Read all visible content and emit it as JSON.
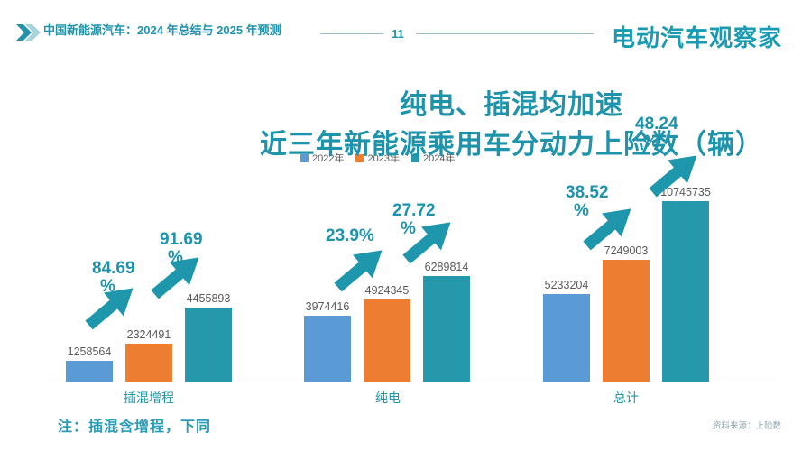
{
  "colors": {
    "teal": "#1E93AC",
    "bar_blue": "#5B9BD5",
    "bar_orange": "#ED7D31",
    "bar_teal": "#2598AC",
    "value_text": "#595959",
    "axis": "#D6D6D6"
  },
  "header": {
    "title": "中国新能源汽车：2024 年总结与 2025 年预测",
    "page_number": "11",
    "logo": "电动汽车观察家"
  },
  "title": {
    "line1": "纯电、插混均加速",
    "line2": "近三年新能源乘用车分动力上险数（辆）"
  },
  "chart_data": {
    "type": "bar",
    "title": "近三年新能源乘用车分动力上险数（辆）",
    "categories": [
      "插混增程",
      "纯电",
      "总计"
    ],
    "series": [
      {
        "name": "2022年",
        "color": "#5B9BD5",
        "values": [
          1258564,
          3974416,
          5233204
        ]
      },
      {
        "name": "2023年",
        "color": "#ED7D31",
        "values": [
          2324491,
          4924345,
          7249003
        ]
      },
      {
        "name": "2024年",
        "color": "#2598AC",
        "values": [
          4455893,
          6289814,
          10745735
        ]
      }
    ],
    "growth_annotations": [
      {
        "category": "插混增程",
        "span": "2022→2023",
        "lines": [
          "84.69",
          "%"
        ]
      },
      {
        "category": "插混增程",
        "span": "2023→2024",
        "lines": [
          "91.69",
          "%"
        ]
      },
      {
        "category": "纯电",
        "span": "2022→2023",
        "lines": [
          "23.9%"
        ]
      },
      {
        "category": "纯电",
        "span": "2023→2024",
        "lines": [
          "27.72",
          "%"
        ]
      },
      {
        "category": "总计",
        "span": "2022→2023",
        "lines": [
          "38.52",
          "%"
        ]
      },
      {
        "category": "总计",
        "span": "2023→2024",
        "lines": [
          "48.24",
          "%"
        ],
        "occluded_by_title": true
      }
    ],
    "value_labels_shown": true,
    "legend_position": "top-center",
    "ylim": [
      0,
      10745735
    ],
    "grid": false
  },
  "note": "注：插混含增程，下同",
  "source": "资料来源：上险数"
}
